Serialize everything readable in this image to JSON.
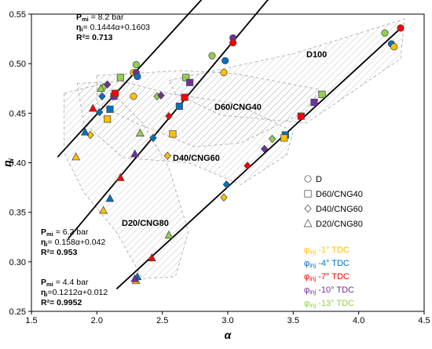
{
  "chart_data": {
    "type": "scatter",
    "xlabel": "α",
    "ylabel": "η",
    "ylabel_sub": "i",
    "xlim": [
      1.5,
      4.5
    ],
    "ylim": [
      0.25,
      0.55
    ],
    "xticks": [
      "1.5",
      "2.0",
      "2.5",
      "3.0",
      "3.5",
      "4.0",
      "4.5"
    ],
    "yticks": [
      "0.25",
      "0.30",
      "0.35",
      "0.40",
      "0.45",
      "0.50",
      "0.55"
    ],
    "grid": false,
    "regions": [
      {
        "label": "D100",
        "polygon": [
          [
            2.55,
            0.483
          ],
          [
            3.5,
            0.51
          ],
          [
            4.35,
            0.545
          ],
          [
            4.32,
            0.505
          ],
          [
            3.6,
            0.44
          ],
          [
            2.95,
            0.448
          ],
          [
            2.6,
            0.47
          ]
        ]
      },
      {
        "label": "D60/CNG40",
        "polygon": [
          [
            2.0,
            0.488
          ],
          [
            2.65,
            0.493
          ],
          [
            3.05,
            0.49
          ],
          [
            3.7,
            0.474
          ],
          [
            3.6,
            0.452
          ],
          [
            3.1,
            0.42
          ],
          [
            2.75,
            0.416
          ],
          [
            2.3,
            0.44
          ],
          [
            2.0,
            0.46
          ]
        ]
      },
      {
        "label": "D40/CNG60",
        "polygon": [
          [
            1.85,
            0.48
          ],
          [
            2.2,
            0.482
          ],
          [
            2.55,
            0.47
          ],
          [
            3.05,
            0.46
          ],
          [
            3.5,
            0.432
          ],
          [
            3.45,
            0.408
          ],
          [
            3.1,
            0.378
          ],
          [
            2.7,
            0.4
          ],
          [
            2.2,
            0.405
          ],
          [
            1.9,
            0.44
          ]
        ]
      },
      {
        "label": "D20/CNG80",
        "polygon": [
          [
            1.75,
            0.47
          ],
          [
            2.05,
            0.48
          ],
          [
            2.35,
            0.44
          ],
          [
            2.55,
            0.395
          ],
          [
            2.7,
            0.33
          ],
          [
            2.6,
            0.285
          ],
          [
            2.35,
            0.283
          ],
          [
            2.15,
            0.33
          ],
          [
            1.9,
            0.37
          ],
          [
            1.75,
            0.41
          ]
        ]
      }
    ],
    "trendlines": [
      {
        "label": "P<sub>mi</sub> = 8.2 bar",
        "pressure": "8.2 bar",
        "equation": "η<sub>i</sub>= 0.1444α+0.1603",
        "r2": "R²= 0.713",
        "slope": 0.1444,
        "intercept": 0.1603,
        "x_range": [
          1.7,
          3.1
        ]
      },
      {
        "label": "P<sub>mi</sub> = 6.2 bar",
        "pressure": "6.2 bar",
        "equation": "η<sub>i</sub>= 0.158α+0.042",
        "r2": "R²= 0.953",
        "slope": 0.158,
        "intercept": 0.042,
        "x_range": [
          1.78,
          3.35
        ]
      },
      {
        "label": "P<sub>mi</sub> = 4.4 bar",
        "pressure": "4.4 bar",
        "equation": "η<sub>i</sub>=0.1212α+0.012",
        "r2": "R²= 0.9952",
        "slope": 0.1212,
        "intercept": 0.012,
        "x_range": [
          2.15,
          4.33
        ]
      }
    ],
    "points": [
      {
        "x": 2.28,
        "y": 0.491,
        "shape": "circle",
        "color": "#ffc000"
      },
      {
        "x": 2.3,
        "y": 0.499,
        "shape": "circle",
        "color": "#92d050"
      },
      {
        "x": 2.3,
        "y": 0.491,
        "shape": "circle",
        "color": "#7030a0"
      },
      {
        "x": 2.31,
        "y": 0.487,
        "shape": "circle",
        "color": "#0070c0"
      },
      {
        "x": 2.28,
        "y": 0.467,
        "shape": "circle",
        "color": "#ffc000"
      },
      {
        "x": 2.88,
        "y": 0.508,
        "shape": "circle",
        "color": "#92d050"
      },
      {
        "x": 2.98,
        "y": 0.503,
        "shape": "circle",
        "color": "#0070c0"
      },
      {
        "x": 3.04,
        "y": 0.526,
        "shape": "circle",
        "color": "#7030a0"
      },
      {
        "x": 3.04,
        "y": 0.521,
        "shape": "circle",
        "color": "#ff0000"
      },
      {
        "x": 2.97,
        "y": 0.491,
        "shape": "circle",
        "color": "#ffc000"
      },
      {
        "x": 4.2,
        "y": 0.531,
        "shape": "circle",
        "color": "#92d050"
      },
      {
        "x": 4.25,
        "y": 0.52,
        "shape": "circle",
        "color": "#0070c0"
      },
      {
        "x": 4.27,
        "y": 0.517,
        "shape": "circle",
        "color": "#ffc000"
      },
      {
        "x": 4.32,
        "y": 0.536,
        "shape": "circle",
        "color": "#ff0000"
      },
      {
        "x": 2.18,
        "y": 0.486,
        "shape": "square",
        "color": "#92d050"
      },
      {
        "x": 2.13,
        "y": 0.467,
        "shape": "square",
        "color": "#7030a0"
      },
      {
        "x": 2.14,
        "y": 0.47,
        "shape": "square",
        "color": "#ff0000"
      },
      {
        "x": 2.1,
        "y": 0.454,
        "shape": "square",
        "color": "#0070c0"
      },
      {
        "x": 2.08,
        "y": 0.444,
        "shape": "square",
        "color": "#ffc000"
      },
      {
        "x": 2.68,
        "y": 0.486,
        "shape": "square",
        "color": "#92d050"
      },
      {
        "x": 2.71,
        "y": 0.481,
        "shape": "square",
        "color": "#7030a0"
      },
      {
        "x": 2.67,
        "y": 0.466,
        "shape": "square",
        "color": "#ff0000"
      },
      {
        "x": 2.63,
        "y": 0.457,
        "shape": "square",
        "color": "#0070c0"
      },
      {
        "x": 2.58,
        "y": 0.429,
        "shape": "square",
        "color": "#ffc000"
      },
      {
        "x": 3.56,
        "y": 0.447,
        "shape": "square",
        "color": "#ff0000"
      },
      {
        "x": 3.44,
        "y": 0.428,
        "shape": "square",
        "color": "#0070c0"
      },
      {
        "x": 3.43,
        "y": 0.425,
        "shape": "square",
        "color": "#ffc000"
      },
      {
        "x": 3.66,
        "y": 0.461,
        "shape": "square",
        "color": "#7030a0"
      },
      {
        "x": 3.72,
        "y": 0.469,
        "shape": "square",
        "color": "#92d050"
      },
      {
        "x": 2.08,
        "y": 0.479,
        "shape": "diamond",
        "color": "#7030a0"
      },
      {
        "x": 2.05,
        "y": 0.476,
        "shape": "diamond",
        "color": "#92d050"
      },
      {
        "x": 2.04,
        "y": 0.467,
        "shape": "diamond",
        "color": "#0070c0"
      },
      {
        "x": 2.02,
        "y": 0.451,
        "shape": "diamond",
        "color": "#0070c0"
      },
      {
        "x": 1.95,
        "y": 0.428,
        "shape": "diamond",
        "color": "#ffc000"
      },
      {
        "x": 2.46,
        "y": 0.467,
        "shape": "diamond",
        "color": "#92d050"
      },
      {
        "x": 2.49,
        "y": 0.468,
        "shape": "diamond",
        "color": "#7030a0"
      },
      {
        "x": 2.55,
        "y": 0.447,
        "shape": "diamond",
        "color": "#ff0000"
      },
      {
        "x": 2.43,
        "y": 0.425,
        "shape": "diamond",
        "color": "#0070c0"
      },
      {
        "x": 2.54,
        "y": 0.407,
        "shape": "diamond",
        "color": "#ffc000"
      },
      {
        "x": 3.28,
        "y": 0.414,
        "shape": "diamond",
        "color": "#7030a0"
      },
      {
        "x": 3.34,
        "y": 0.424,
        "shape": "diamond",
        "color": "#92d050"
      },
      {
        "x": 3.15,
        "y": 0.397,
        "shape": "diamond",
        "color": "#ff0000"
      },
      {
        "x": 2.99,
        "y": 0.378,
        "shape": "diamond",
        "color": "#0070c0"
      },
      {
        "x": 2.97,
        "y": 0.365,
        "shape": "diamond",
        "color": "#ffc000"
      },
      {
        "x": 2.03,
        "y": 0.475,
        "shape": "triangle",
        "color": "#92d050"
      },
      {
        "x": 1.97,
        "y": 0.455,
        "shape": "triangle",
        "color": "#ff0000"
      },
      {
        "x": 1.91,
        "y": 0.431,
        "shape": "triangle",
        "color": "#0070c0"
      },
      {
        "x": 1.84,
        "y": 0.406,
        "shape": "triangle",
        "color": "#ffc000"
      },
      {
        "x": 2.33,
        "y": 0.43,
        "shape": "triangle",
        "color": "#92d050"
      },
      {
        "x": 2.29,
        "y": 0.409,
        "shape": "triangle",
        "color": "#7030a0"
      },
      {
        "x": 2.18,
        "y": 0.385,
        "shape": "triangle",
        "color": "#ff0000"
      },
      {
        "x": 2.1,
        "y": 0.364,
        "shape": "triangle",
        "color": "#0070c0"
      },
      {
        "x": 2.05,
        "y": 0.352,
        "shape": "triangle",
        "color": "#ffc000"
      },
      {
        "x": 2.55,
        "y": 0.327,
        "shape": "triangle",
        "color": "#92d050"
      },
      {
        "x": 2.42,
        "y": 0.304,
        "shape": "triangle",
        "color": "#ff0000"
      },
      {
        "x": 2.31,
        "y": 0.285,
        "shape": "triangle",
        "color": "#0070c0"
      },
      {
        "x": 2.3,
        "y": 0.281,
        "shape": "triangle",
        "color": "#ffc000"
      },
      {
        "x": 2.29,
        "y": 0.283,
        "shape": "triangle",
        "color": "#7030a0"
      }
    ],
    "legend_markers": [
      {
        "label": "D",
        "shape": "circle"
      },
      {
        "label": "D60/CNG40",
        "shape": "square"
      },
      {
        "label": "D40/CNG60",
        "shape": "diamond"
      },
      {
        "label": "D20/CNG80",
        "shape": "triangle"
      }
    ],
    "legend_timing": [
      {
        "label": "-1° TDC",
        "color": "#ffc000"
      },
      {
        "label": "-4° TDC",
        "color": "#0070c0"
      },
      {
        "label": "-7° TDC",
        "color": "#ff0000"
      },
      {
        "label": "-10° TDC",
        "color": "#7030a0"
      },
      {
        "label": "-13° TDC",
        "color": "#92d050"
      }
    ],
    "timing_prefix": "φ",
    "timing_sub": "inj"
  }
}
